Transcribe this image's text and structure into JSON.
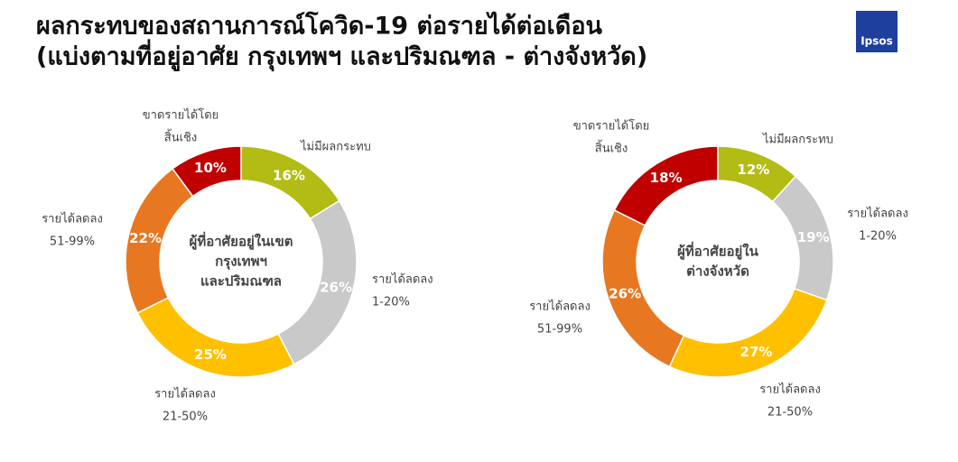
{
  "title": [
    "ผลกระทบของสถานการณ์โควิด-19 ต่อรายได้ต่อเดือน",
    "(แบ่งตามที่อยู่อาศัย กรุงเทพฯ และปริมณฑล - ต่างจังหวัด)"
  ],
  "logo": "Ipsos",
  "chart_data": [
    {
      "type": "donut",
      "center_label": [
        "ผู้ที่อาศัยอยู่ในเขต",
        "กรุงเทพฯ",
        "และปริมณฑล"
      ],
      "categories": [
        [
          "ไม่มีผลกระทบ"
        ],
        [
          "รายได้ลดลง",
          "1-20%"
        ],
        [
          "รายได้ลดลง",
          "21-50%"
        ],
        [
          "รายได้ลดลง",
          "51-99%"
        ],
        [
          "ขาดรายได้โดย",
          "สิ้นเชิง"
        ]
      ],
      "values": [
        16,
        26,
        25,
        22,
        10
      ],
      "value_labels": [
        "16%",
        "26%",
        "25%",
        "22%",
        "10%"
      ],
      "colors": [
        "#b3bc14",
        "#c9c9c9",
        "#ffc000",
        "#e87722",
        "#c00000"
      ]
    },
    {
      "type": "donut",
      "center_label": [
        "ผู้ที่อาศัยอยู่ใน",
        "ต่างจังหวัด"
      ],
      "categories": [
        [
          "ไม่มีผลกระทบ"
        ],
        [
          "รายได้ลดลง",
          "1-20%"
        ],
        [
          "รายได้ลดลง",
          "21-50%"
        ],
        [
          "รายได้ลดลง",
          "51-99%"
        ],
        [
          "ขาดรายได้โดย",
          "สิ้นเชิง"
        ]
      ],
      "values": [
        12,
        19,
        27,
        26,
        18
      ],
      "value_labels": [
        "12%",
        "19%",
        "27%",
        "26%",
        "18%"
      ],
      "colors": [
        "#b3bc14",
        "#c9c9c9",
        "#ffc000",
        "#e87722",
        "#c00000"
      ]
    }
  ]
}
